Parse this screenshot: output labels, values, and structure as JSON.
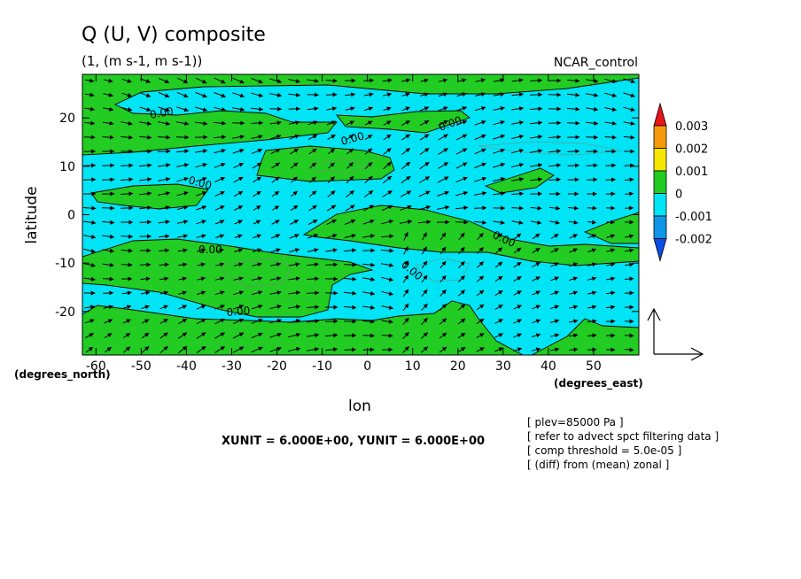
{
  "chart_data": {
    "type": "heatmap",
    "title": "Q (U, V) composite",
    "subtitle": "(1, (m s-1, m s-1))",
    "run_label": "NCAR_control",
    "xlabel": "lon",
    "ylabel": "latitude",
    "x_unit_label": "(degrees_east)",
    "y_unit_label": "(degrees_north)",
    "xlim": [
      -63,
      60
    ],
    "ylim": [
      -29,
      29
    ],
    "x_ticks": [
      "-60",
      "-50",
      "-40",
      "-30",
      "-20",
      "-10",
      "0",
      "10",
      "20",
      "30",
      "40",
      "50"
    ],
    "y_ticks": [
      "20",
      "10",
      "0",
      "-10",
      "-20"
    ],
    "contour_labels": [
      "0.00",
      "0.00",
      "0.00",
      "0.00",
      "0.00",
      "0.00",
      "0.00",
      "0.00"
    ],
    "colorbar": {
      "levels": [
        "0.003",
        "0.002",
        "0.001",
        "0",
        "-0.001",
        "-0.002"
      ],
      "colors": [
        "#e8151b",
        "#f59a0f",
        "#f5e600",
        "#22cc22",
        "#00e4f5",
        "#0f96e6",
        "#0a4ee6"
      ]
    },
    "vector_units": "XUNIT = 6.000E+00, YUNIT = 6.000E+00",
    "notes": [
      "[ plev=85000 Pa ]",
      "[ refer to advect spct filtering data ]",
      "[ comp threshold = 5.0e-05 ]",
      "[ (diff) from (mean) zonal ]"
    ],
    "field_colors": {
      "positive": "#22cc22",
      "negative": "#00e4f5"
    }
  }
}
